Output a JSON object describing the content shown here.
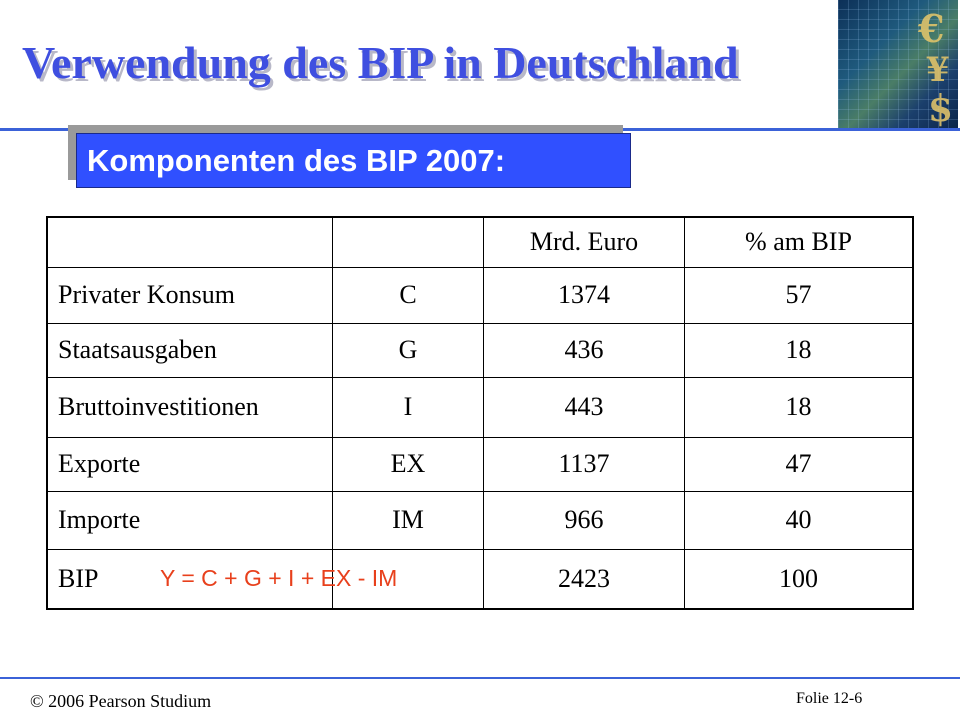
{
  "slide": {
    "title": "Verwendung des BIP in Deutschland",
    "subtitle": "Komponenten des BIP 2007:",
    "formula": "Y = C + G + I + EX - IM",
    "footer": {
      "copyright": "© 2006 Pearson Studium",
      "folie": "Folie 12-6"
    }
  },
  "table": {
    "header": [
      "",
      "",
      "Mrd. Euro",
      "% am BIP"
    ],
    "rows": [
      [
        "Privater Konsum",
        "C",
        "1374",
        "57"
      ],
      [
        "Staatsausgaben",
        "G",
        "436",
        "18"
      ],
      [
        "Bruttoinvestitionen",
        "I",
        "443",
        "18"
      ],
      [
        "Exporte",
        "EX",
        "1137",
        "47"
      ],
      [
        "Importe",
        "IM",
        "966",
        "40"
      ],
      [
        "BIP",
        "",
        "2423",
        "100"
      ]
    ]
  },
  "logo": {
    "glyphs": [
      "€",
      "¥",
      "$"
    ]
  },
  "colors": {
    "title": "#3f4fe0",
    "subtitle_bg": "#3050ff",
    "rule": "#3b62d8",
    "formula": "#e8401c"
  }
}
